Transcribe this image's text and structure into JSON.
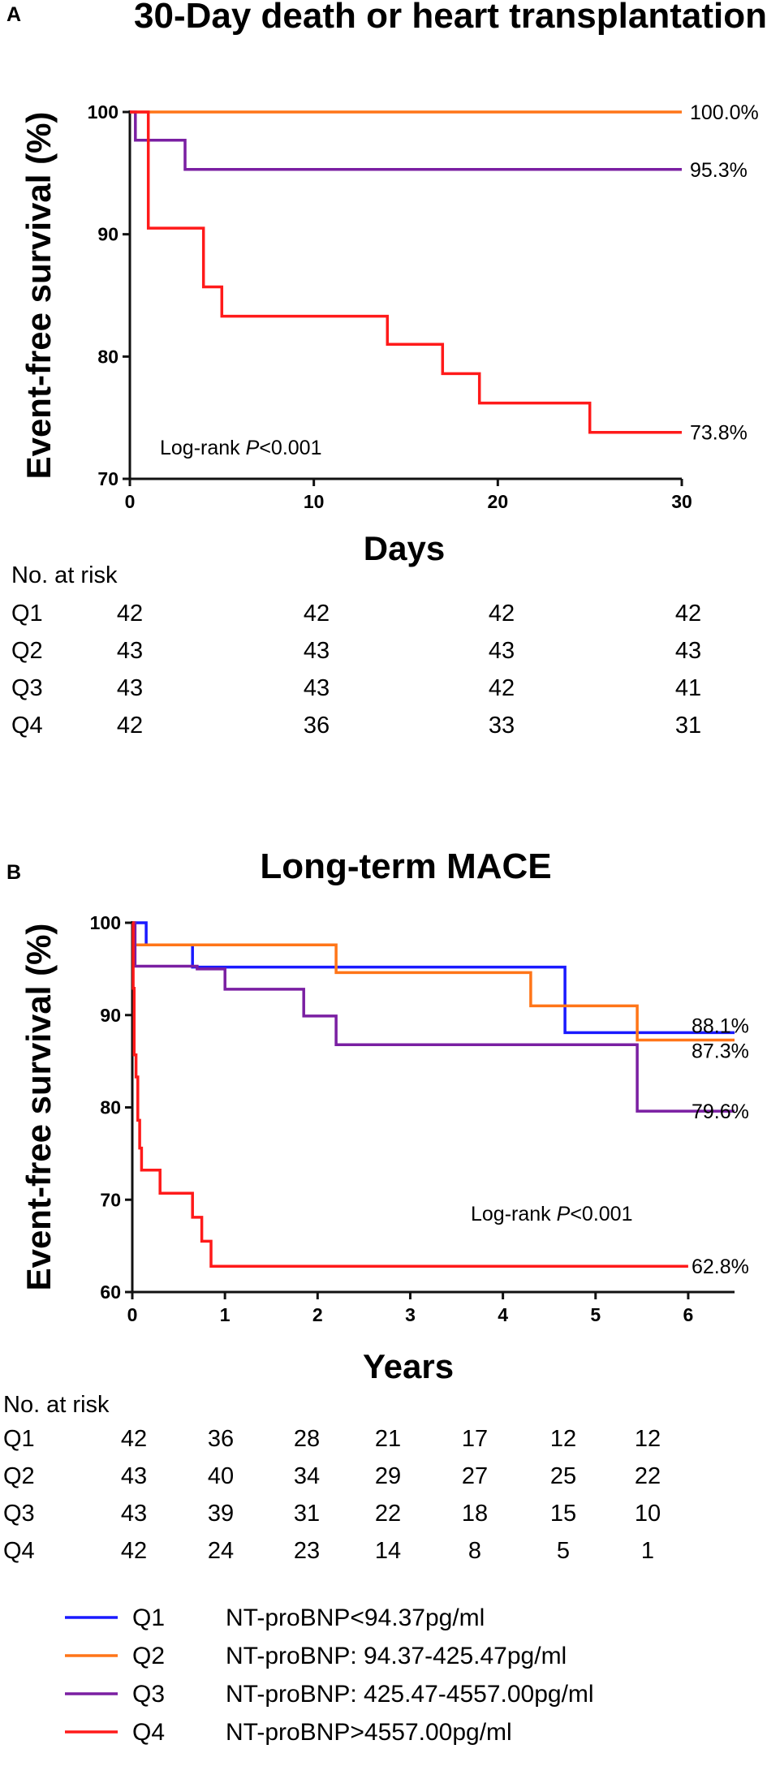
{
  "colors": {
    "Q1": "#1a1aff",
    "Q2": "#ff7518",
    "Q3": "#7a1fa2",
    "Q4": "#ff1a1a"
  },
  "chart_data": [
    {
      "id": "A",
      "type": "line",
      "panel_label": "A",
      "title": "30-Day death or heart transplantation",
      "xlabel": "Days",
      "ylabel": "Event-free survival (%)",
      "xlim": [
        0,
        30
      ],
      "ylim": [
        70,
        100
      ],
      "xticks": [
        0,
        10,
        20,
        30
      ],
      "yticks": [
        70,
        80,
        90,
        100
      ],
      "annotation": {
        "text": "Log-rank ",
        "p_text": "P",
        "rest": "<0.001"
      },
      "series": [
        {
          "name": "Q2",
          "color_key": "Q2",
          "end_label": "100.0%",
          "points": [
            [
              0,
              100
            ],
            [
              30,
              100
            ]
          ]
        },
        {
          "name": "Q3",
          "color_key": "Q3",
          "end_label": "95.3%",
          "points": [
            [
              0,
              100
            ],
            [
              0.3,
              100
            ],
            [
              0.3,
              97.7
            ],
            [
              3,
              97.7
            ],
            [
              3,
              95.3
            ],
            [
              30,
              95.3
            ]
          ]
        },
        {
          "name": "Q4",
          "color_key": "Q4",
          "end_label": "73.8%",
          "points": [
            [
              0,
              100
            ],
            [
              1,
              100
            ],
            [
              1,
              90.5
            ],
            [
              4,
              90.5
            ],
            [
              4,
              85.7
            ],
            [
              5,
              85.7
            ],
            [
              5,
              83.3
            ],
            [
              14,
              83.3
            ],
            [
              14,
              81.0
            ],
            [
              17,
              81.0
            ],
            [
              17,
              78.6
            ],
            [
              19,
              78.6
            ],
            [
              19,
              76.2
            ],
            [
              25,
              76.2
            ],
            [
              25,
              73.8
            ],
            [
              30,
              73.8
            ]
          ]
        }
      ],
      "risk_table": {
        "header": "No. at risk",
        "columns_x": [
          0,
          10,
          20,
          30
        ],
        "rows": [
          {
            "label": "Q1",
            "values": [
              "42",
              "42",
              "42",
              "42"
            ]
          },
          {
            "label": "Q2",
            "values": [
              "43",
              "43",
              "43",
              "43"
            ]
          },
          {
            "label": "Q3",
            "values": [
              "43",
              "43",
              "42",
              "41"
            ]
          },
          {
            "label": "Q4",
            "values": [
              "42",
              "36",
              "33",
              "31"
            ]
          }
        ]
      }
    },
    {
      "id": "B",
      "type": "line",
      "panel_label": "B",
      "title": "Long-term MACE",
      "xlabel": "Years",
      "ylabel": "Event-free survival (%)",
      "xlim": [
        0,
        6.5
      ],
      "ylim": [
        60,
        100
      ],
      "xticks": [
        0,
        1,
        2,
        3,
        4,
        5,
        6
      ],
      "yticks": [
        60,
        70,
        80,
        90,
        100
      ],
      "annotation": {
        "text": "Log-rank ",
        "p_text": "P",
        "rest": "<0.001"
      },
      "series": [
        {
          "name": "Q1",
          "color_key": "Q1",
          "end_label": "88.1%",
          "points": [
            [
              0,
              100
            ],
            [
              0.15,
              100
            ],
            [
              0.15,
              97.6
            ],
            [
              0.65,
              97.6
            ],
            [
              0.65,
              95.2
            ],
            [
              4.67,
              95.2
            ],
            [
              4.67,
              88.1
            ],
            [
              6.5,
              88.1
            ]
          ]
        },
        {
          "name": "Q2",
          "color_key": "Q2",
          "end_label": "87.3%",
          "points": [
            [
              0,
              100
            ],
            [
              0.02,
              100
            ],
            [
              0.02,
              97.6
            ],
            [
              2.2,
              97.6
            ],
            [
              2.2,
              94.6
            ],
            [
              4.3,
              94.6
            ],
            [
              4.3,
              91.0
            ],
            [
              5.45,
              91.0
            ],
            [
              5.45,
              87.3
            ],
            [
              6.5,
              87.3
            ]
          ]
        },
        {
          "name": "Q3",
          "color_key": "Q3",
          "end_label": "79.6%",
          "points": [
            [
              0,
              100
            ],
            [
              0.03,
              100
            ],
            [
              0.03,
              95.3
            ],
            [
              0.7,
              95.3
            ],
            [
              0.7,
              95.0
            ],
            [
              1.0,
              95.0
            ],
            [
              1.0,
              92.8
            ],
            [
              1.85,
              92.8
            ],
            [
              1.85,
              89.9
            ],
            [
              2.2,
              89.9
            ],
            [
              2.2,
              86.8
            ],
            [
              5.45,
              86.8
            ],
            [
              5.45,
              79.6
            ],
            [
              6.5,
              79.6
            ]
          ]
        },
        {
          "name": "Q4",
          "color_key": "Q4",
          "end_label": "62.8%",
          "points": [
            [
              0,
              100
            ],
            [
              0.01,
              100
            ],
            [
              0.01,
              92.9
            ],
            [
              0.02,
              92.9
            ],
            [
              0.02,
              85.7
            ],
            [
              0.04,
              85.7
            ],
            [
              0.04,
              83.3
            ],
            [
              0.06,
              83.3
            ],
            [
              0.06,
              78.6
            ],
            [
              0.08,
              78.6
            ],
            [
              0.08,
              75.6
            ],
            [
              0.1,
              75.6
            ],
            [
              0.1,
              73.2
            ],
            [
              0.3,
              73.2
            ],
            [
              0.3,
              70.7
            ],
            [
              0.65,
              70.7
            ],
            [
              0.65,
              68.1
            ],
            [
              0.75,
              68.1
            ],
            [
              0.75,
              65.5
            ],
            [
              0.85,
              65.5
            ],
            [
              0.85,
              62.8
            ],
            [
              6.0,
              62.8
            ]
          ]
        }
      ],
      "risk_table": {
        "header": "No. at risk",
        "columns_x": [
          0,
          1,
          2,
          3,
          4,
          5,
          6
        ],
        "rows": [
          {
            "label": "Q1",
            "values": [
              "42",
              "36",
              "28",
              "21",
              "17",
              "12",
              "12"
            ]
          },
          {
            "label": "Q2",
            "values": [
              "43",
              "40",
              "34",
              "29",
              "27",
              "25",
              "22"
            ]
          },
          {
            "label": "Q3",
            "values": [
              "43",
              "39",
              "31",
              "22",
              "18",
              "15",
              "10"
            ]
          },
          {
            "label": "Q4",
            "values": [
              "42",
              "24",
              "23",
              "14",
              "8",
              "5",
              "1"
            ]
          }
        ]
      }
    }
  ],
  "legend": [
    {
      "label": "Q1",
      "color_key": "Q1",
      "desc": "NT-proBNP<94.37pg/ml"
    },
    {
      "label": "Q2",
      "color_key": "Q2",
      "desc": "NT-proBNP: 94.37-425.47pg/ml"
    },
    {
      "label": "Q3",
      "color_key": "Q3",
      "desc": "NT-proBNP: 425.47-4557.00pg/ml"
    },
    {
      "label": "Q4",
      "color_key": "Q4",
      "desc": "NT-proBNP>4557.00pg/ml"
    }
  ]
}
